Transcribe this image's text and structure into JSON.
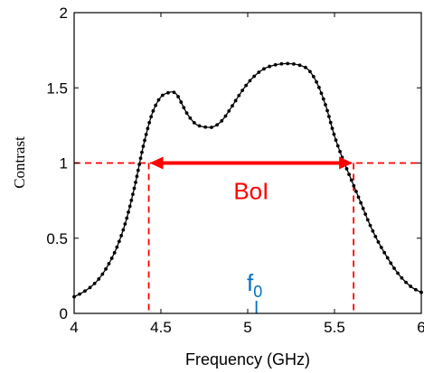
{
  "chart_data": {
    "type": "line",
    "title": "",
    "xlabel": "Frequency (GHz)",
    "ylabel": "Contrast",
    "xlim": [
      4,
      6
    ],
    "ylim": [
      0,
      2
    ],
    "xticks": [
      "4",
      "4.5",
      "5",
      "5.5",
      "6"
    ],
    "yticks": [
      "0",
      "0.5",
      "1",
      "1.5",
      "2"
    ],
    "grid": false,
    "series": [
      {
        "color": "#000000",
        "marker": "dot",
        "x": [
          4.0,
          4.05,
          4.1,
          4.15,
          4.2,
          4.25,
          4.3,
          4.35,
          4.4,
          4.45,
          4.5,
          4.55,
          4.575,
          4.6,
          4.65,
          4.7,
          4.75,
          4.8,
          4.85,
          4.9,
          4.95,
          5.0,
          5.05,
          5.1,
          5.15,
          5.2,
          5.25,
          5.3,
          5.35,
          5.4,
          5.45,
          5.5,
          5.55,
          5.6,
          5.65,
          5.7,
          5.75,
          5.8,
          5.85,
          5.9,
          5.95,
          6.0
        ],
        "y": [
          0.11,
          0.14,
          0.18,
          0.24,
          0.33,
          0.45,
          0.62,
          0.85,
          1.12,
          1.33,
          1.44,
          1.47,
          1.47,
          1.44,
          1.33,
          1.26,
          1.24,
          1.24,
          1.28,
          1.36,
          1.45,
          1.53,
          1.59,
          1.63,
          1.65,
          1.66,
          1.66,
          1.65,
          1.62,
          1.53,
          1.38,
          1.18,
          1.02,
          0.88,
          0.74,
          0.6,
          0.48,
          0.38,
          0.29,
          0.22,
          0.17,
          0.14
        ]
      }
    ],
    "threshold": {
      "y": 1,
      "color": "#ff0000",
      "style": "dashed"
    },
    "band": {
      "label": "BoI",
      "x_start": 4.43,
      "x_end": 5.61,
      "y": 1,
      "color": "#ff0000"
    },
    "marker_f0": {
      "label": "f",
      "subscript": "0",
      "x": 5.05,
      "color": "#0072bd"
    }
  }
}
